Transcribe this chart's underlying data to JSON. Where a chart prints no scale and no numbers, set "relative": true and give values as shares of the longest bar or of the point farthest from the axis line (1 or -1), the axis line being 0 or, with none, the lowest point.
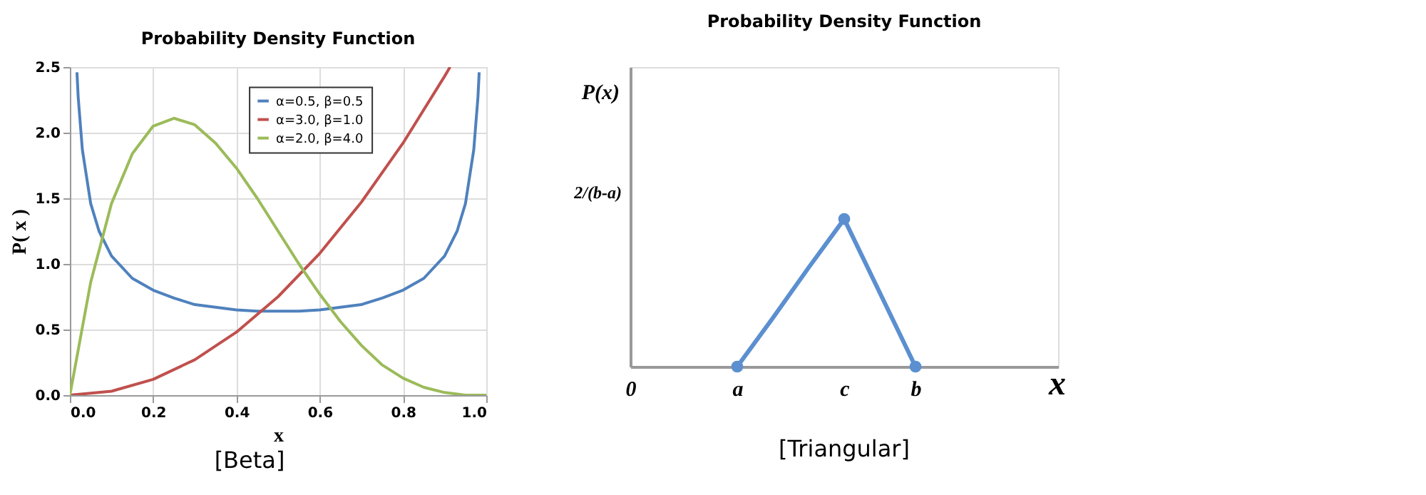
{
  "chart_data": [
    {
      "type": "line",
      "title": "Probability Density Function",
      "xlabel": "x",
      "ylabel": "P( x )",
      "xlim": [
        0,
        1
      ],
      "ylim": [
        0,
        2.5
      ],
      "xticks": [
        {
          "value": 0,
          "label": "0.0"
        },
        {
          "value": 0.2,
          "label": "0.2"
        },
        {
          "value": 0.4,
          "label": "0.4"
        },
        {
          "value": 0.6,
          "label": "0.6"
        },
        {
          "value": 0.8,
          "label": "0.8"
        },
        {
          "value": 1,
          "label": "1.0"
        }
      ],
      "yticks": [
        {
          "value": 0,
          "label": "0.0"
        },
        {
          "value": 0.5,
          "label": "0.5"
        },
        {
          "value": 1,
          "label": "1.0"
        },
        {
          "value": 1.5,
          "label": "1.5"
        },
        {
          "value": 2,
          "label": "2.0"
        },
        {
          "value": 2.5,
          "label": "2.5"
        }
      ],
      "grid": true,
      "legend": "top right",
      "annotations": [
        "[Beta]"
      ],
      "series": [
        {
          "name": "α=0.5, β=0.5",
          "color": "#4f81bd",
          "x": [
            0.017,
            0.02,
            0.03,
            0.05,
            0.07,
            0.1,
            0.15,
            0.2,
            0.25,
            0.3,
            0.35,
            0.4,
            0.45,
            0.5,
            0.55,
            0.6,
            0.65,
            0.7,
            0.75,
            0.8,
            0.85,
            0.9,
            0.93,
            0.95,
            0.97,
            0.98,
            0.983
          ],
          "values": [
            2.46,
            2.27,
            1.87,
            1.46,
            1.25,
            1.06,
            0.89,
            0.8,
            0.74,
            0.69,
            0.67,
            0.65,
            0.64,
            0.64,
            0.64,
            0.65,
            0.67,
            0.69,
            0.74,
            0.8,
            0.89,
            1.06,
            1.25,
            1.46,
            1.87,
            2.27,
            2.46
          ]
        },
        {
          "name": "α=3.0, β=1.0",
          "color": "#c0504d",
          "x": [
            0,
            0.1,
            0.2,
            0.3,
            0.4,
            0.5,
            0.6,
            0.7,
            0.8,
            0.9,
            0.913
          ],
          "values": [
            0,
            0.03,
            0.12,
            0.27,
            0.48,
            0.75,
            1.08,
            1.47,
            1.92,
            2.43,
            2.5
          ]
        },
        {
          "name": "α=2.0, β=4.0",
          "color": "#9bbb59",
          "x": [
            0,
            0.05,
            0.1,
            0.15,
            0.2,
            0.25,
            0.3,
            0.35,
            0.4,
            0.45,
            0.5,
            0.55,
            0.6,
            0.65,
            0.7,
            0.75,
            0.8,
            0.85,
            0.9,
            0.95,
            1
          ],
          "values": [
            0,
            0.86,
            1.46,
            1.84,
            2.05,
            2.11,
            2.06,
            1.92,
            1.73,
            1.5,
            1.25,
            1.0,
            0.77,
            0.56,
            0.38,
            0.23,
            0.13,
            0.06,
            0.02,
            0,
            0
          ]
        }
      ]
    },
    {
      "type": "line",
      "title": "Probability Density Function",
      "xlabel": "x",
      "ylabel": "P(x)",
      "relative": true,
      "grid": false,
      "categories": [
        "0",
        null,
        null,
        "a",
        null,
        null,
        "c",
        null,
        "b",
        null,
        null,
        null,
        null
      ],
      "annotations": [
        "2/(b-a)",
        "[Triangular]"
      ],
      "series": [
        {
          "color": "#5b8fd0",
          "values": [
            null,
            null,
            null,
            0,
            0.33,
            0.67,
            1,
            0.5,
            0,
            null,
            null,
            null,
            null
          ]
        },
        {
          "type": "scatter",
          "marker": "circle",
          "color": "#5b8fd0",
          "values": [
            null,
            null,
            null,
            0,
            null,
            null,
            1,
            null,
            0,
            null,
            null,
            null,
            null
          ]
        }
      ]
    }
  ]
}
